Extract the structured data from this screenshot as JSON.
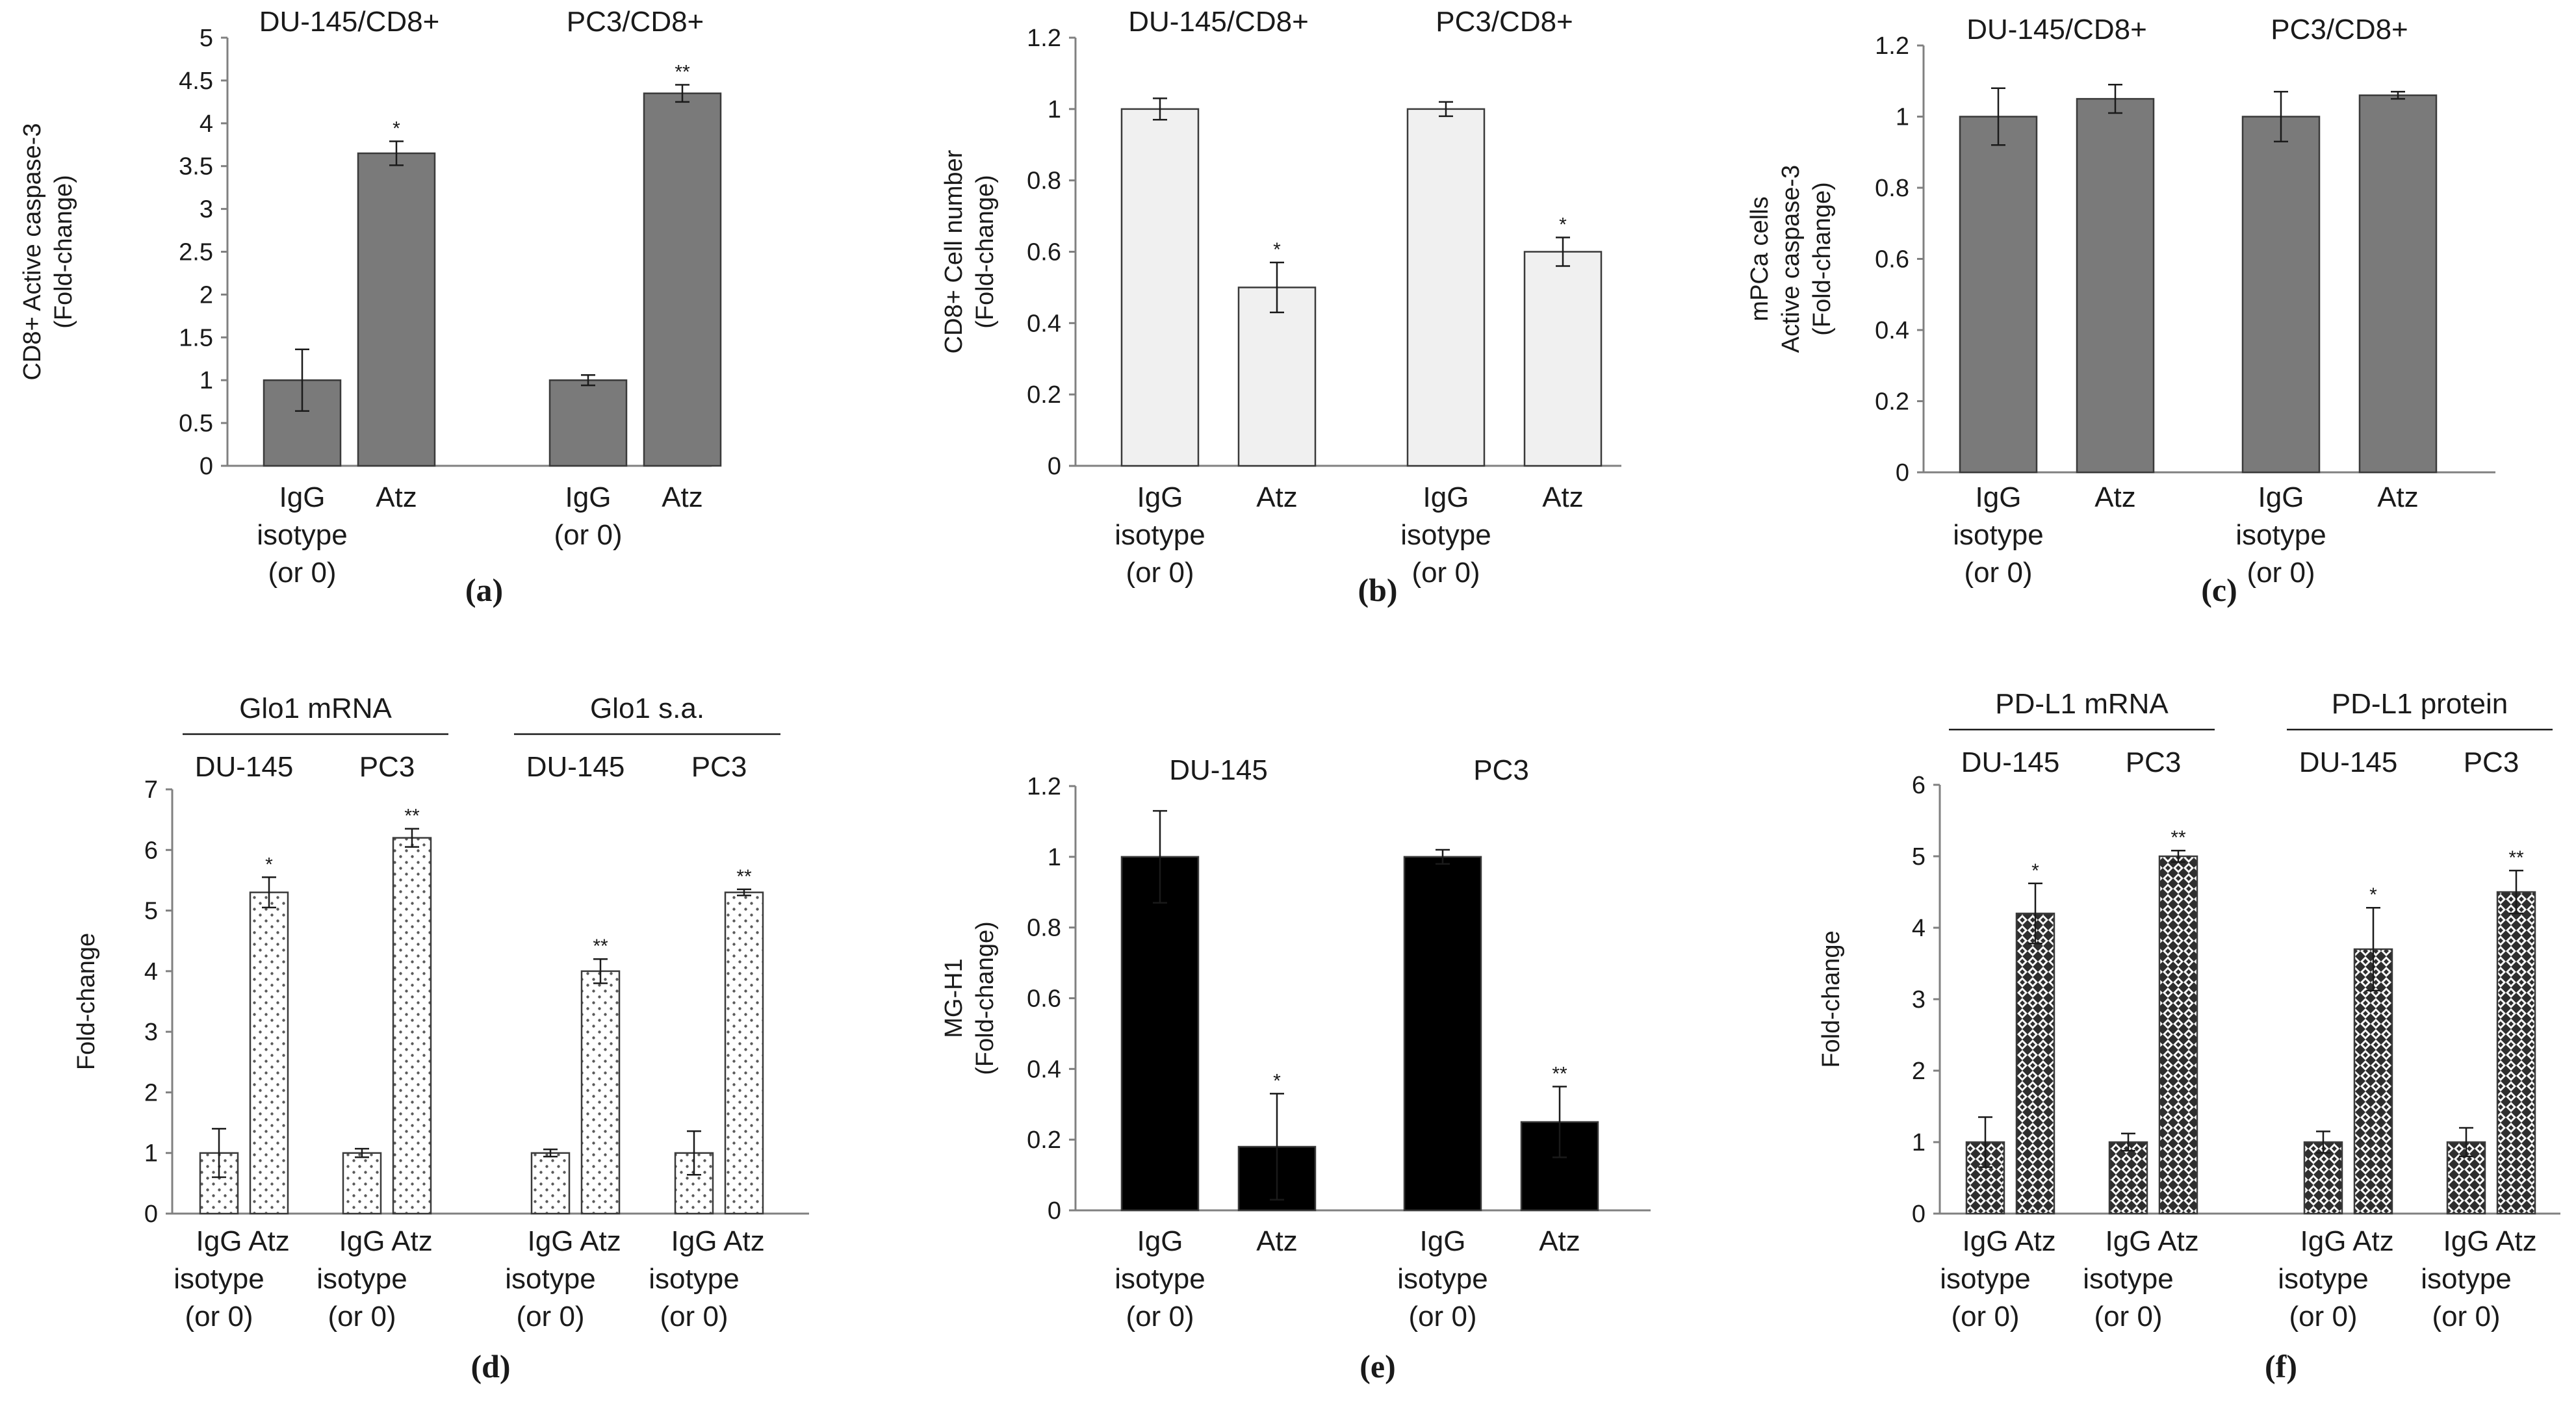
{
  "colors": {
    "dark_gray_fill": "#7a7a7a",
    "light_gray_fill": "#f0f0f0",
    "black_fill": "#000000",
    "axis": "#808080",
    "bar_stroke": "#3a3a3a"
  },
  "chart_data": [
    {
      "panel": "(a)",
      "type": "bar",
      "ylabel": [
        "CD8+ Active caspase-3",
        "(Fold-change)"
      ],
      "ylim": [
        0,
        5
      ],
      "yticks": [
        "0",
        "0.5",
        "1",
        "1.5",
        "2",
        "2.5",
        "3",
        "3.5",
        "4",
        "4.5",
        "5"
      ],
      "fill": "dark",
      "headers": [],
      "groups": [
        {
          "name": "DU-145/CD8+",
          "bars": [
            {
              "label": [
                "IgG",
                "isotype",
                "(or 0)"
              ],
              "value": 1.0,
              "err": 0.36,
              "sig": ""
            },
            {
              "label": [
                "Atz"
              ],
              "value": 3.65,
              "err": 0.14,
              "sig": "*"
            }
          ]
        },
        {
          "name": "PC3/CD8+",
          "bars": [
            {
              "label": [
                "IgG",
                "(or 0)"
              ],
              "value": 1.0,
              "err": 0.06,
              "sig": ""
            },
            {
              "label": [
                "Atz"
              ],
              "value": 4.35,
              "err": 0.1,
              "sig": "**"
            }
          ]
        }
      ]
    },
    {
      "panel": "(b)",
      "type": "bar",
      "ylabel": [
        "CD8+ Cell number",
        "(Fold-change)"
      ],
      "ylim": [
        0,
        1.2
      ],
      "yticks": [
        "0",
        "0.2",
        "0.4",
        "0.6",
        "0.8",
        "1",
        "1.2"
      ],
      "fill": "light",
      "headers": [],
      "groups": [
        {
          "name": "DU-145/CD8+",
          "bars": [
            {
              "label": [
                "IgG",
                "isotype",
                "(or 0)"
              ],
              "value": 1.0,
              "err": 0.03,
              "sig": ""
            },
            {
              "label": [
                "Atz"
              ],
              "value": 0.5,
              "err": 0.07,
              "sig": "*"
            }
          ]
        },
        {
          "name": "PC3/CD8+",
          "bars": [
            {
              "label": [
                "IgG",
                "isotype",
                "(or 0)"
              ],
              "value": 1.0,
              "err": 0.02,
              "sig": ""
            },
            {
              "label": [
                "Atz"
              ],
              "value": 0.6,
              "err": 0.04,
              "sig": "*"
            }
          ]
        }
      ]
    },
    {
      "panel": "(c)",
      "type": "bar",
      "ylabel": [
        "mPCa cells",
        "Active caspase-3",
        "(Fold-change)"
      ],
      "ylim": [
        0,
        1.2
      ],
      "yticks": [
        "0",
        "0.2",
        "0.4",
        "0.6",
        "0.8",
        "1",
        "1.2"
      ],
      "fill": "dark",
      "headers": [],
      "groups": [
        {
          "name": "DU-145/CD8+",
          "bars": [
            {
              "label": [
                "IgG",
                "isotype",
                "(or 0)"
              ],
              "value": 1.0,
              "err": 0.08,
              "sig": ""
            },
            {
              "label": [
                "Atz"
              ],
              "value": 1.05,
              "err": 0.04,
              "sig": ""
            }
          ]
        },
        {
          "name": "PC3/CD8+",
          "bars": [
            {
              "label": [
                "IgG",
                "isotype",
                "(or 0)"
              ],
              "value": 1.0,
              "err": 0.07,
              "sig": ""
            },
            {
              "label": [
                "Atz"
              ],
              "value": 1.06,
              "err": 0.01,
              "sig": ""
            }
          ]
        }
      ]
    },
    {
      "panel": "(d)",
      "type": "bar",
      "ylabel": [
        "Fold-change"
      ],
      "ylim": [
        0,
        7
      ],
      "yticks": [
        "0",
        "1",
        "2",
        "3",
        "4",
        "5",
        "6",
        "7"
      ],
      "fill": "dots_dense",
      "headers": [
        {
          "text": "Glo1 mRNA",
          "groups": [
            0,
            1
          ]
        },
        {
          "text": "Glo1 s.a.",
          "groups": [
            2,
            3
          ]
        }
      ],
      "groups": [
        {
          "name": "DU-145",
          "bars": [
            {
              "label": [
                "IgG",
                "isotype",
                "(or 0)"
              ],
              "value": 1.0,
              "err": 0.4,
              "sig": ""
            },
            {
              "label": [
                "Atz"
              ],
              "value": 5.3,
              "err": 0.25,
              "sig": "*"
            }
          ]
        },
        {
          "name": "PC3",
          "bars": [
            {
              "label": [
                "IgG",
                "isotype",
                "(or 0)"
              ],
              "value": 1.0,
              "err": 0.07,
              "sig": ""
            },
            {
              "label": [
                "Atz"
              ],
              "value": 6.2,
              "err": 0.15,
              "sig": "**"
            }
          ]
        },
        {
          "name": "DU-145",
          "bars": [
            {
              "label": [
                "IgG",
                "isotype",
                "(or 0)"
              ],
              "value": 1.0,
              "err": 0.06,
              "sig": ""
            },
            {
              "label": [
                "Atz"
              ],
              "value": 4.0,
              "err": 0.2,
              "sig": "**"
            }
          ]
        },
        {
          "name": "PC3",
          "bars": [
            {
              "label": [
                "IgG",
                "isotype",
                "(or 0)"
              ],
              "value": 1.0,
              "err": 0.36,
              "sig": ""
            },
            {
              "label": [
                "Atz"
              ],
              "value": 5.3,
              "err": 0.05,
              "sig": "**"
            }
          ]
        }
      ]
    },
    {
      "panel": "(e)",
      "type": "bar",
      "ylabel": [
        "MG-H1",
        "(Fold-change)"
      ],
      "ylim": [
        0,
        1.2
      ],
      "yticks": [
        "0",
        "0.2",
        "0.4",
        "0.6",
        "0.8",
        "1",
        "1.2"
      ],
      "fill": "black",
      "headers": [],
      "groups": [
        {
          "name": "DU-145",
          "bars": [
            {
              "label": [
                "IgG",
                "isotype",
                "(or 0)"
              ],
              "value": 1.0,
              "err": 0.13,
              "sig": ""
            },
            {
              "label": [
                "Atz"
              ],
              "value": 0.18,
              "err": 0.15,
              "sig": "*"
            }
          ]
        },
        {
          "name": "PC3",
          "bars": [
            {
              "label": [
                "IgG",
                "isotype",
                "(or 0)"
              ],
              "value": 1.0,
              "err": 0.02,
              "sig": ""
            },
            {
              "label": [
                "Atz"
              ],
              "value": 0.25,
              "err": 0.1,
              "sig": "**"
            }
          ]
        }
      ]
    },
    {
      "panel": "(f)",
      "type": "bar",
      "ylabel": [
        "Fold-change"
      ],
      "ylim": [
        0,
        6
      ],
      "yticks": [
        "0",
        "1",
        "2",
        "3",
        "4",
        "5",
        "6"
      ],
      "fill": "crosshatch",
      "headers": [
        {
          "text": "PD-L1 mRNA",
          "groups": [
            0,
            1
          ]
        },
        {
          "text": "PD-L1 protein",
          "groups": [
            2,
            3
          ]
        }
      ],
      "groups": [
        {
          "name": "DU-145",
          "bars": [
            {
              "label": [
                "IgG",
                "isotype",
                "(or 0)"
              ],
              "value": 1.0,
              "err": 0.35,
              "sig": ""
            },
            {
              "label": [
                "Atz"
              ],
              "value": 4.2,
              "err": 0.42,
              "sig": "*"
            }
          ]
        },
        {
          "name": "PC3",
          "bars": [
            {
              "label": [
                "IgG",
                "isotype",
                "(or 0)"
              ],
              "value": 1.0,
              "err": 0.12,
              "sig": ""
            },
            {
              "label": [
                "Atz"
              ],
              "value": 5.0,
              "err": 0.08,
              "sig": "**"
            }
          ]
        },
        {
          "name": "DU-145",
          "bars": [
            {
              "label": [
                "IgG",
                "isotype",
                "(or 0)"
              ],
              "value": 1.0,
              "err": 0.15,
              "sig": ""
            },
            {
              "label": [
                "Atz"
              ],
              "value": 3.7,
              "err": 0.58,
              "sig": "*"
            }
          ]
        },
        {
          "name": "PC3",
          "bars": [
            {
              "label": [
                "IgG",
                "isotype",
                "(or 0)"
              ],
              "value": 1.0,
              "err": 0.2,
              "sig": ""
            },
            {
              "label": [
                "Atz"
              ],
              "value": 4.5,
              "err": 0.3,
              "sig": "**"
            }
          ]
        }
      ]
    }
  ]
}
